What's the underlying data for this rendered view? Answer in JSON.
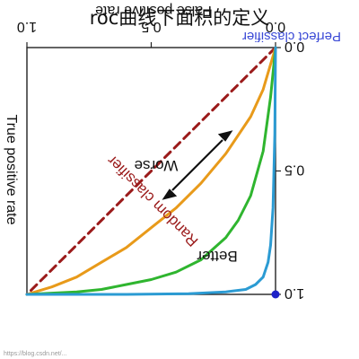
{
  "overlay_title": "roc曲线下面积的定义",
  "watermark": "https://blog.csdn.net/...",
  "chart_data": {
    "type": "line",
    "orientation": "rotated 180 degrees (image appears upside down)",
    "xlabel": "False positive rate",
    "ylabel": "True positive rate",
    "xlim": [
      0,
      1
    ],
    "ylim": [
      0,
      1
    ],
    "x_ticks": [
      "0.0",
      "0.5",
      "1.0"
    ],
    "y_ticks": [
      "0.0",
      "0.5",
      "1.0"
    ],
    "grid": false,
    "series": [
      {
        "name": "Random classifier",
        "color": "#9b1b1b",
        "style": "dashed",
        "x": [
          0,
          1
        ],
        "y": [
          0,
          1
        ]
      },
      {
        "name": "",
        "color": "#e89a1a",
        "style": "solid",
        "x": [
          0,
          0.05,
          0.1,
          0.2,
          0.3,
          0.4,
          0.5,
          0.6,
          0.7,
          0.8,
          0.9,
          1.0
        ],
        "y": [
          0,
          0.17,
          0.28,
          0.43,
          0.55,
          0.65,
          0.73,
          0.81,
          0.87,
          0.93,
          0.97,
          1.0
        ]
      },
      {
        "name": "",
        "color": "#2fb52f",
        "style": "solid",
        "x": [
          0,
          0.02,
          0.05,
          0.1,
          0.15,
          0.2,
          0.3,
          0.4,
          0.5,
          0.6,
          0.7,
          0.8,
          1.0
        ],
        "y": [
          0,
          0.2,
          0.42,
          0.6,
          0.7,
          0.77,
          0.86,
          0.91,
          0.94,
          0.96,
          0.98,
          0.99,
          1.0
        ]
      },
      {
        "name": "",
        "color": "#2b9bd3",
        "style": "solid",
        "x": [
          0,
          0.003,
          0.01,
          0.02,
          0.03,
          0.05,
          0.08,
          0.12,
          0.2,
          0.35,
          0.6,
          1.0
        ],
        "y": [
          0,
          0.35,
          0.65,
          0.8,
          0.87,
          0.93,
          0.96,
          0.98,
          0.99,
          0.997,
          1.0,
          1.0
        ]
      }
    ],
    "point": {
      "label": "Perfect classifier",
      "color": "#1e22c8",
      "x": 0,
      "y": 1
    },
    "annotations": [
      "Better",
      "Worse"
    ]
  }
}
